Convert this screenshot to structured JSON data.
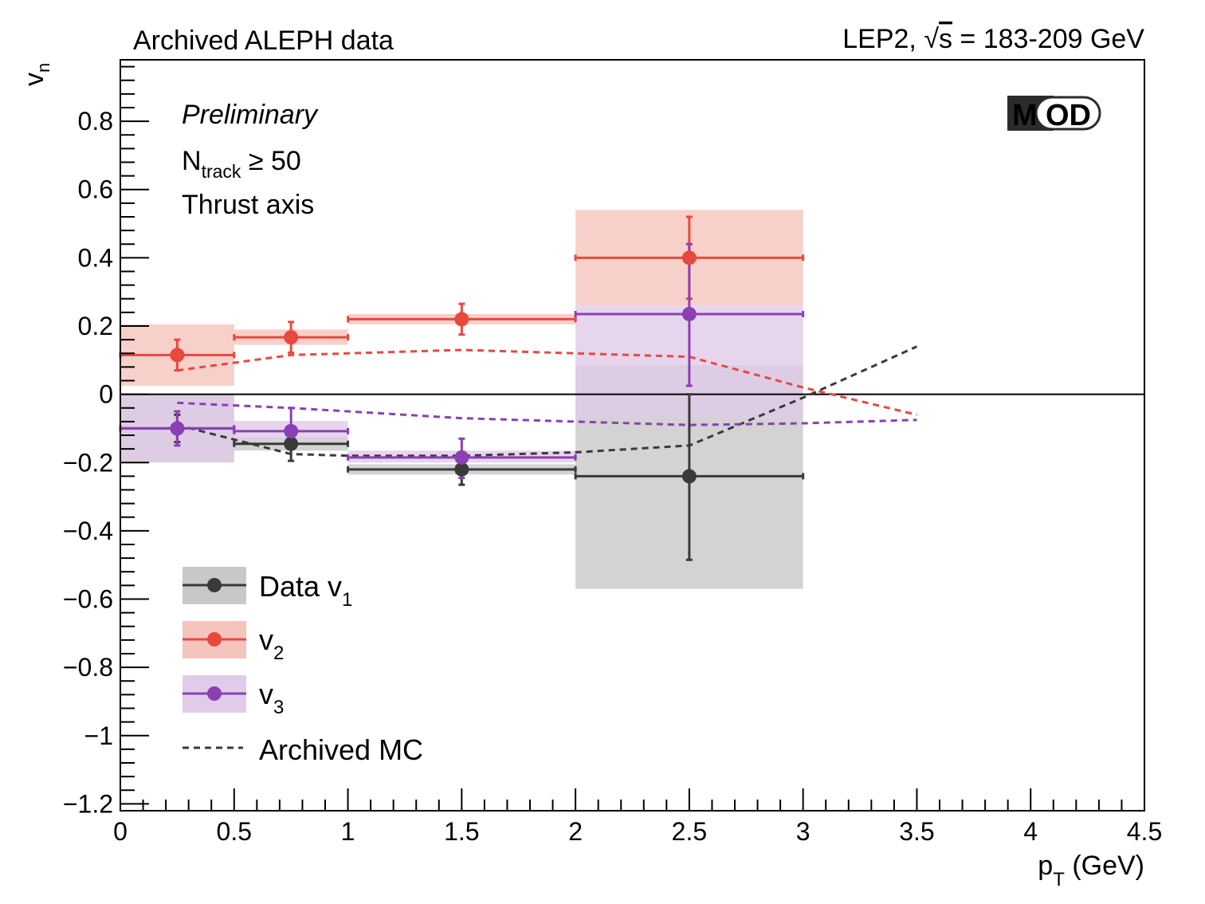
{
  "header": {
    "left": "Archived ALEPH data",
    "right_prefix": "LEP2, ",
    "sqrt_symbol": "√",
    "right_s": "s",
    "right_suffix": " = 183-209 GeV"
  },
  "annotations": {
    "preliminary": "Preliminary",
    "ntrack_main": "N",
    "ntrack_sub": "track",
    "ntrack_cut": " ≥ 50",
    "axis_mode": "Thrust axis"
  },
  "logo": {
    "m": "M",
    "od": "OD",
    "bg": "#2b2b2b",
    "accent": "#8b1a2b"
  },
  "chart_data": {
    "type": "scatter",
    "title": "",
    "xlabel_main": "p",
    "xlabel_sub": "T",
    "xlabel_unit": " (GeV)",
    "ylabel_main": "v",
    "ylabel_sub": "n",
    "xlim": [
      0,
      4.5
    ],
    "ylim": [
      -1.22,
      0.98
    ],
    "x_ticks": [
      0,
      0.5,
      1,
      1.5,
      2,
      2.5,
      3,
      3.5,
      4,
      4.5
    ],
    "x_tick_labels": [
      "0",
      "0.5",
      "1",
      "1.5",
      "2",
      "2.5",
      "3",
      "3.5",
      "4",
      "4.5"
    ],
    "y_ticks": [
      -1.2,
      -1,
      -0.8,
      -0.6,
      -0.4,
      -0.2,
      0,
      0.2,
      0.4,
      0.6,
      0.8
    ],
    "y_tick_labels": [
      "−1.2",
      "−1",
      "−0.8",
      "−0.6",
      "−0.4",
      "−0.2",
      "0",
      "0.2",
      "0.4",
      "0.6",
      "0.8"
    ],
    "zero_line": true,
    "series": [
      {
        "name": "Data v1",
        "legend_main": "Data v",
        "legend_sub": "1",
        "color": "#3a3a3a",
        "band_color": "#c8c8c8",
        "points": [
          {
            "x": 0.25,
            "xlo": 0,
            "xhi": 0.5,
            "y": -0.1,
            "ylo": -0.14,
            "yhi": -0.06,
            "syslo": -0.2,
            "syshi": 0
          },
          {
            "x": 0.75,
            "xlo": 0.5,
            "xhi": 1,
            "y": -0.145,
            "ylo": -0.195,
            "yhi": -0.095,
            "syslo": -0.165,
            "syshi": -0.125
          },
          {
            "x": 1.5,
            "xlo": 1,
            "xhi": 2,
            "y": -0.22,
            "ylo": -0.265,
            "yhi": -0.175,
            "syslo": -0.235,
            "syshi": -0.205
          },
          {
            "x": 2.5,
            "xlo": 2,
            "xhi": 3,
            "y": -0.24,
            "ylo": -0.485,
            "yhi": 0,
            "syslo": -0.57,
            "syshi": 0.085
          }
        ]
      },
      {
        "name": "v2",
        "legend_main": "v",
        "legend_sub": "2",
        "color": "#e8493d",
        "band_color": "#f5c4bd",
        "points": [
          {
            "x": 0.25,
            "xlo": 0,
            "xhi": 0.5,
            "y": 0.115,
            "ylo": 0.07,
            "yhi": 0.16,
            "syslo": 0.025,
            "syshi": 0.205
          },
          {
            "x": 0.75,
            "xlo": 0.5,
            "xhi": 1,
            "y": 0.167,
            "ylo": 0.122,
            "yhi": 0.212,
            "syslo": 0.145,
            "syshi": 0.19
          },
          {
            "x": 1.5,
            "xlo": 1,
            "xhi": 2,
            "y": 0.22,
            "ylo": 0.175,
            "yhi": 0.265,
            "syslo": 0.205,
            "syshi": 0.235
          },
          {
            "x": 2.5,
            "xlo": 2,
            "xhi": 3,
            "y": 0.4,
            "ylo": 0.28,
            "yhi": 0.52,
            "syslo": 0.26,
            "syshi": 0.54
          }
        ]
      },
      {
        "name": "v3",
        "legend_main": "v",
        "legend_sub": "3",
        "color": "#8b3fb5",
        "band_color": "#e1cbea",
        "points": [
          {
            "x": 0.25,
            "xlo": 0,
            "xhi": 0.5,
            "y": -0.1,
            "ylo": -0.15,
            "yhi": -0.05,
            "syslo": -0.195,
            "syshi": -0.005
          },
          {
            "x": 0.75,
            "xlo": 0.5,
            "xhi": 1,
            "y": -0.108,
            "ylo": -0.158,
            "yhi": -0.04,
            "syslo": -0.135,
            "syshi": -0.078
          },
          {
            "x": 1.5,
            "xlo": 1,
            "xhi": 2,
            "y": -0.185,
            "ylo": -0.245,
            "yhi": -0.13,
            "syslo": -0.2,
            "syshi": -0.165
          },
          {
            "x": 2.5,
            "xlo": 2,
            "xhi": 3,
            "y": 0.235,
            "ylo": 0.025,
            "yhi": 0.44,
            "syslo": -0.07,
            "syshi": 0.26
          }
        ]
      }
    ],
    "mc_curves": [
      {
        "name": "Archived MC v1",
        "color": "#3a3a3a",
        "x": [
          0.25,
          0.75,
          1.0,
          1.5,
          2.0,
          2.5,
          3.0,
          3.5
        ],
        "y": [
          -0.09,
          -0.175,
          -0.18,
          -0.18,
          -0.17,
          -0.15,
          -0.01,
          0.14
        ]
      },
      {
        "name": "Archived MC v2",
        "color": "#e8493d",
        "x": [
          0.25,
          0.75,
          1.0,
          1.5,
          2.0,
          2.5,
          3.0,
          3.5
        ],
        "y": [
          0.07,
          0.115,
          0.12,
          0.13,
          0.12,
          0.11,
          0.02,
          -0.06
        ]
      },
      {
        "name": "Archived MC v3",
        "color": "#8b3fb5",
        "x": [
          0.25,
          0.75,
          1.0,
          1.5,
          2.0,
          2.5,
          3.0,
          3.5
        ],
        "y": [
          -0.025,
          -0.04,
          -0.05,
          -0.07,
          -0.08,
          -0.09,
          -0.085,
          -0.075
        ]
      }
    ],
    "legend_mc_label": "Archived MC",
    "legend_mc_color": "#3a3a3a"
  }
}
